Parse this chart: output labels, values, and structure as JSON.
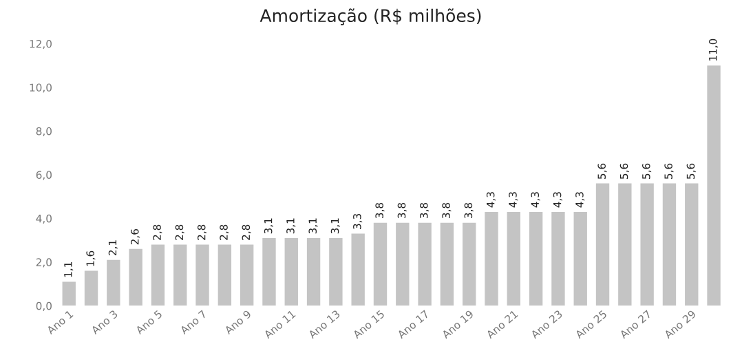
{
  "chart_data": {
    "type": "bar",
    "title": "Amortização (R$ milhões)",
    "categories": [
      "Ano 1",
      null,
      "Ano 3",
      null,
      "Ano 5",
      null,
      "Ano 7",
      null,
      "Ano 9",
      null,
      "Ano 11",
      null,
      "Ano 13",
      null,
      "Ano 15",
      null,
      "Ano 17",
      null,
      "Ano 19",
      null,
      "Ano 21",
      null,
      "Ano 23",
      null,
      "Ano 25",
      null,
      "Ano 27",
      null,
      "Ano 29",
      null
    ],
    "values": [
      1.1,
      1.6,
      2.1,
      2.6,
      2.8,
      2.8,
      2.8,
      2.8,
      2.8,
      3.1,
      3.1,
      3.1,
      3.1,
      3.3,
      3.8,
      3.8,
      3.8,
      3.8,
      3.8,
      4.3,
      4.3,
      4.3,
      4.3,
      4.3,
      5.6,
      5.6,
      5.6,
      5.6,
      5.6,
      11.0
    ],
    "value_labels": [
      "1,1",
      "1,6",
      "2,1",
      "2,6",
      "2,8",
      "2,8",
      "2,8",
      "2,8",
      "2,8",
      "3,1",
      "3,1",
      "3,1",
      "3,1",
      "3,3",
      "3,8",
      "3,8",
      "3,8",
      "3,8",
      "3,8",
      "4,3",
      "4,3",
      "4,3",
      "4,3",
      "4,3",
      "5,6",
      "5,6",
      "5,6",
      "5,6",
      "5,6",
      "11,0"
    ],
    "color": "#c4c4c4",
    "ylim": [
      0,
      12
    ],
    "yticks": [
      {
        "value": 0,
        "label": "0,0"
      },
      {
        "value": 2,
        "label": "2,0"
      },
      {
        "value": 4,
        "label": "4,0"
      },
      {
        "value": 6,
        "label": "6,0"
      },
      {
        "value": 8,
        "label": "8,0"
      },
      {
        "value": 10,
        "label": "10,0"
      },
      {
        "value": 12,
        "label": "12,0"
      }
    ],
    "grid": false,
    "legend": false
  }
}
